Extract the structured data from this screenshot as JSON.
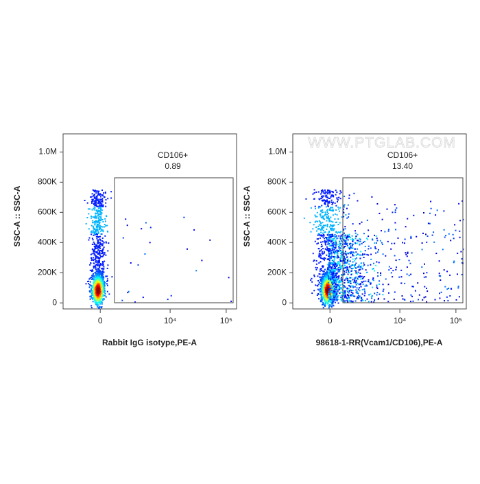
{
  "chart_data": [
    {
      "type": "flow-density",
      "xlabel": "Rabbit IgG isotype,PE-A",
      "ylabel": "SSC-A :: SSC-A",
      "xscale": "biexponential",
      "xlim": [
        -2500,
        153000
      ],
      "ylim": [
        -40000,
        1120000
      ],
      "xticks": [
        0,
        {
          "value": 10000,
          "label": "10⁴"
        },
        {
          "value": 100000,
          "label": "10⁵"
        }
      ],
      "yticks": [
        0,
        {
          "value": 200000,
          "label": "200K"
        },
        {
          "value": 400000,
          "label": "400K"
        },
        {
          "value": 600000,
          "label": "600K"
        },
        {
          "value": 800000,
          "label": "800K"
        },
        {
          "value": 1000000,
          "label": "1.0M"
        }
      ],
      "gate": {
        "name": "CD106+",
        "value": 0.89
      }
    },
    {
      "type": "flow-density",
      "xlabel": "98618-1-RR(Vcam1/CD106),PE-A",
      "ylabel": "SSC-A :: SSC-A",
      "xscale": "biexponential",
      "xlim": [
        -2500,
        153000
      ],
      "ylim": [
        -40000,
        1120000
      ],
      "xticks": [
        0,
        {
          "value": 10000,
          "label": "10⁴"
        },
        {
          "value": 100000,
          "label": "10⁵"
        }
      ],
      "yticks": [
        0,
        {
          "value": 200000,
          "label": "200K"
        },
        {
          "value": 400000,
          "label": "400K"
        },
        {
          "value": 600000,
          "label": "600K"
        },
        {
          "value": 800000,
          "label": "800K"
        },
        {
          "value": 1000000,
          "label": "1.0M"
        }
      ],
      "gate": {
        "name": "CD106+",
        "value": 13.4,
        "value_label": "13.40"
      }
    }
  ],
  "watermark": "WWW.PTGLAB.COM"
}
